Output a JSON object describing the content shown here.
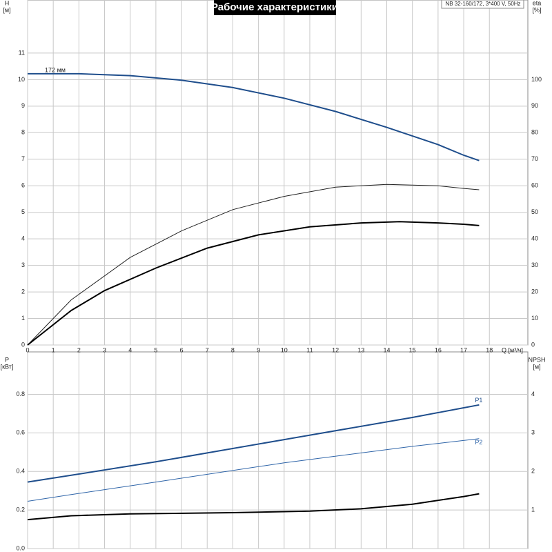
{
  "chart_data": [
    {
      "type": "line",
      "title": "Рабочие характеристики",
      "subtitle": "NB 32-160/172, 3*400 V, 50Hz",
      "x_label": "Q [м³/ч]",
      "y_label": "H",
      "y_unit": "[м]",
      "y2_label": "eta",
      "y2_unit": "[%]",
      "xlim": [
        0,
        19.5
      ],
      "ylim": [
        0,
        13
      ],
      "y2lim": [
        0,
        130
      ],
      "xticks": [
        0,
        1,
        2,
        3,
        4,
        5,
        6,
        7,
        8,
        9,
        10,
        11,
        12,
        13,
        14,
        15,
        16,
        17,
        18
      ],
      "yticks": [
        0,
        1,
        2,
        3,
        4,
        5,
        6,
        7,
        8,
        9,
        10,
        11
      ],
      "y2ticks": [
        0,
        10,
        20,
        30,
        40,
        50,
        60,
        70,
        80,
        90,
        100
      ],
      "grid": true,
      "series": [
        {
          "name": "172 мм",
          "color": "#1f4e8c",
          "x": [
            0,
            2,
            4,
            6,
            8,
            10,
            12,
            14,
            16,
            17,
            17.6
          ],
          "values": [
            10.22,
            10.22,
            10.15,
            9.98,
            9.7,
            9.3,
            8.8,
            8.2,
            7.55,
            7.15,
            6.95
          ]
        },
        {
          "color": "#222222",
          "axis": "y2",
          "x": [
            0,
            1.7,
            4,
            6,
            8,
            10,
            12,
            14,
            16,
            17,
            17.6
          ],
          "values": [
            0,
            17,
            33,
            43,
            51,
            56,
            59.5,
            60.5,
            60,
            59,
            58.5
          ]
        },
        {
          "color": "#000000",
          "axis": "y2",
          "x": [
            0,
            1.7,
            3,
            5,
            7,
            9,
            11,
            13,
            14.5,
            16,
            17,
            17.6
          ],
          "values": [
            0,
            13,
            20.5,
            29,
            36.5,
            41.5,
            44.5,
            46,
            46.5,
            46,
            45.5,
            45
          ]
        }
      ]
    },
    {
      "type": "line",
      "y_label": "P",
      "y_unit": "[кВт]",
      "y2_label": "NPSH",
      "y2_unit": "[м]",
      "xlim": [
        0,
        19.5
      ],
      "ylim": [
        0,
        1.02
      ],
      "y2lim": [
        0,
        5.1
      ],
      "xticks": [
        0,
        1,
        2,
        3,
        4,
        5,
        6,
        7,
        8,
        9,
        10,
        11,
        12,
        13,
        14,
        15,
        16,
        17,
        18
      ],
      "yticks": [
        {
          "value": 0,
          "label": "0.0"
        },
        0.2,
        0.4,
        0.6,
        0.8
      ],
      "y2ticks": [
        1,
        2,
        3,
        4
      ],
      "grid": true,
      "series": [
        {
          "name": "P1",
          "color": "#1f4e8c",
          "x": [
            0,
            1.7,
            5,
            10,
            15,
            17,
            17.6
          ],
          "values": [
            0.345,
            0.38,
            0.45,
            0.565,
            0.68,
            0.73,
            0.745
          ]
        },
        {
          "name": "P2",
          "color": "#2e64a8",
          "x": [
            0,
            1.7,
            5,
            10,
            15,
            17.6
          ],
          "values": [
            0.245,
            0.28,
            0.345,
            0.445,
            0.53,
            0.57
          ]
        },
        {
          "color": "#000000",
          "axis": "y2",
          "x": [
            0,
            1.7,
            4,
            8,
            11,
            13,
            15,
            17,
            17.6
          ],
          "values": [
            0.75,
            0.85,
            0.9,
            0.93,
            0.97,
            1.03,
            1.15,
            1.35,
            1.42
          ]
        }
      ]
    }
  ]
}
